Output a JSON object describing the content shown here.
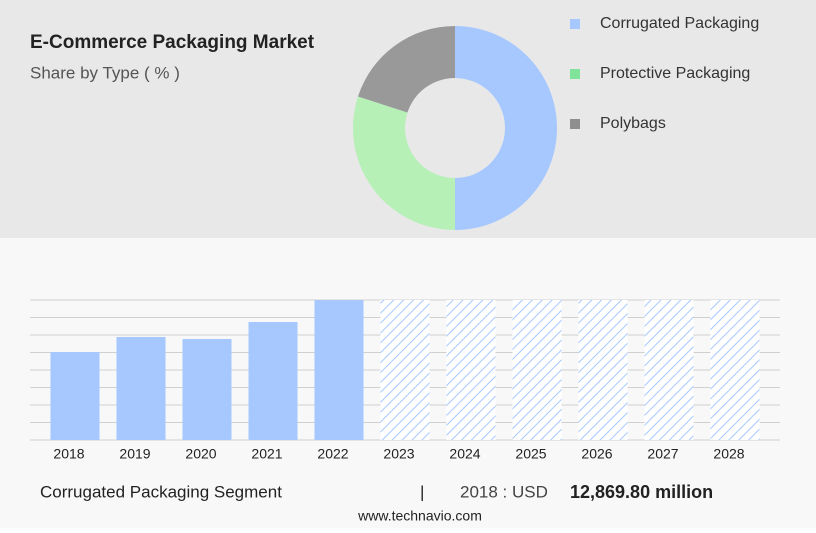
{
  "chart_data": [
    {
      "type": "pie",
      "title": "E-Commerce Packaging Market",
      "subtitle": "Share by Type ( % )",
      "categories": [
        "Corrugated Packaging",
        "Protective Packaging",
        "Polybags"
      ],
      "values": [
        50,
        30,
        20
      ],
      "colors": [
        "#a6c8ff",
        "#b6f0b6",
        "#999999"
      ],
      "legend_colors": [
        "#a6c8ff",
        "#7fe39a",
        "#8f8f8f"
      ],
      "legend": "right"
    },
    {
      "type": "bar",
      "categories": [
        "2018",
        "2019",
        "2020",
        "2021",
        "2022",
        "2023",
        "2024",
        "2025",
        "2026",
        "2027",
        "2028"
      ],
      "values": [
        12869.8,
        15064,
        14771,
        17258,
        20475,
        null,
        null,
        null,
        null,
        null,
        null
      ],
      "color": "#a6c8ff",
      "forecast_color": "#a6c8ff",
      "ylim": [
        0,
        20475
      ],
      "grid": true
    }
  ],
  "footer": {
    "segment": "Corrugated Packaging Segment",
    "separator": "|",
    "year_label": "2018 : USD",
    "value": "12,869.80 million",
    "source": "www.technavio.com"
  }
}
